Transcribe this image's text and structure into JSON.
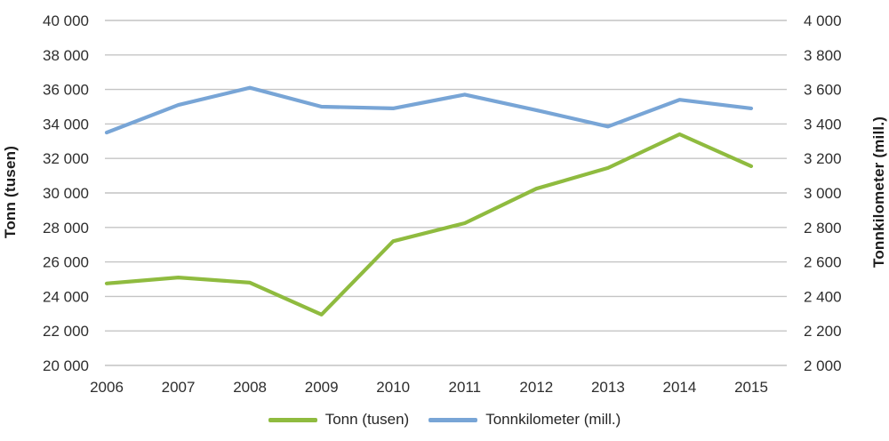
{
  "chart_data": {
    "type": "line",
    "x": [
      "2006",
      "2007",
      "2008",
      "2009",
      "2010",
      "2011",
      "2012",
      "2013",
      "2014",
      "2015"
    ],
    "series": [
      {
        "name": "Tonn (tusen)",
        "axis": "left",
        "color": "#8fbb3f",
        "values": [
          24750,
          25100,
          24800,
          22950,
          27200,
          28250,
          30250,
          31450,
          33400,
          31550
        ]
      },
      {
        "name": "Tonnkilometer (mill.)",
        "axis": "right",
        "color": "#78a5d6",
        "values": [
          3350,
          3510,
          3610,
          3500,
          3490,
          3570,
          3480,
          3385,
          3540,
          3490
        ]
      }
    ],
    "left_axis": {
      "title": "Tonn (tusen)",
      "min": 20000,
      "max": 40000,
      "step": 2000,
      "tick_labels": [
        "40 000",
        "38 000",
        "36 000",
        "34 000",
        "32 000",
        "30 000",
        "28 000",
        "26 000",
        "24 000",
        "22 000",
        "20 000"
      ]
    },
    "right_axis": {
      "title": "Tonnkilometer (mill.)",
      "min": 2000,
      "max": 4000,
      "step": 200,
      "tick_labels": [
        "4 000",
        "3 800",
        "3 600",
        "3 400",
        "3 200",
        "3 000",
        "2 800",
        "2 600",
        "2 400",
        "2 200",
        "2 000"
      ]
    },
    "grid": "horizontal-only",
    "legend_position": "bottom-center",
    "colors": {
      "grid": "#c4c4c4",
      "tick_text": "#2e2e2e",
      "axis_title_text": "#1c1c1c",
      "background": "#ffffff"
    }
  }
}
